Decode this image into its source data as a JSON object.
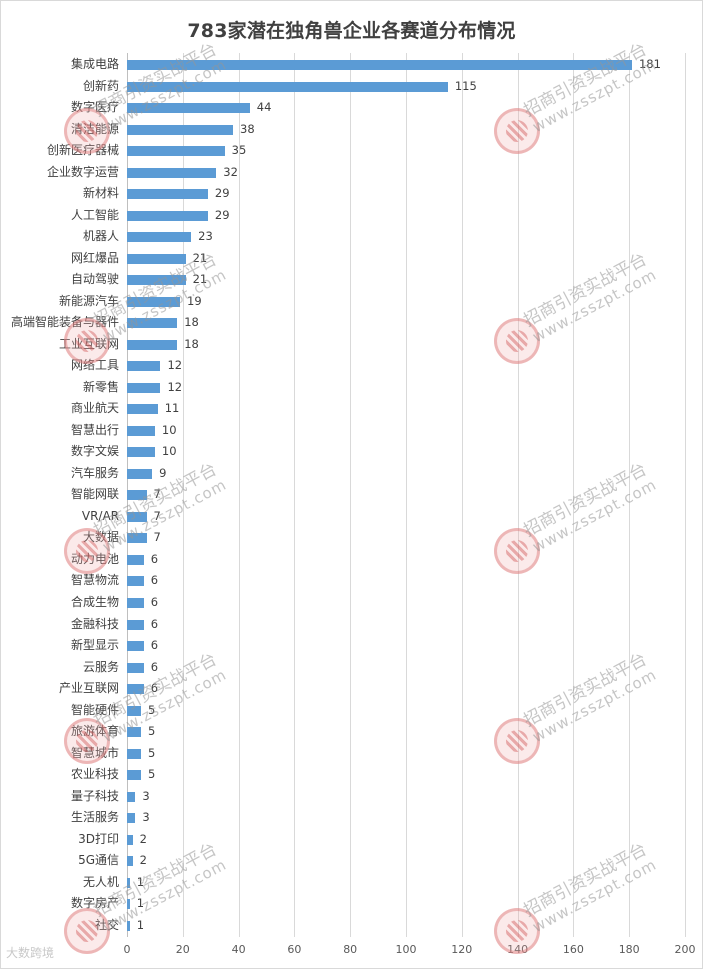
{
  "chart_data": {
    "type": "bar",
    "orientation": "horizontal",
    "title": "783家潜在独角兽企业各赛道分布情况",
    "xlabel": "",
    "ylabel": "",
    "xlim": [
      0,
      200
    ],
    "x_ticks": [
      0,
      20,
      40,
      60,
      80,
      100,
      120,
      140,
      160,
      180,
      200
    ],
    "grid": "vertical",
    "legend": "none",
    "bar_color": "#5b9bd5",
    "data_labels": true,
    "categories": [
      "集成电路",
      "创新药",
      "数字医疗",
      "清洁能源",
      "创新医疗器械",
      "企业数字运营",
      "新材料",
      "人工智能",
      "机器人",
      "网红爆品",
      "自动驾驶",
      "新能源汽车",
      "高端智能装备与器件",
      "工业互联网",
      "网络工具",
      "新零售",
      "商业航天",
      "智慧出行",
      "数字文娱",
      "汽车服务",
      "智能网联",
      "VR/AR",
      "大数据",
      "动力电池",
      "智慧物流",
      "合成生物",
      "金融科技",
      "新型显示",
      "云服务",
      "产业互联网",
      "智能硬件",
      "旅游体育",
      "智慧城市",
      "农业科技",
      "量子科技",
      "生活服务",
      "3D打印",
      "5G通信",
      "无人机",
      "数字房产",
      "社交"
    ],
    "values": [
      181,
      115,
      44,
      38,
      35,
      32,
      29,
      29,
      23,
      21,
      21,
      19,
      18,
      18,
      12,
      12,
      11,
      10,
      10,
      9,
      7,
      7,
      7,
      6,
      6,
      6,
      6,
      6,
      6,
      6,
      5,
      5,
      5,
      5,
      3,
      3,
      2,
      2,
      1,
      1,
      1
    ]
  },
  "watermark": {
    "text": "招商引资实战平台",
    "url": "www.zsszpt.com",
    "source_logo": "大数跨境"
  }
}
